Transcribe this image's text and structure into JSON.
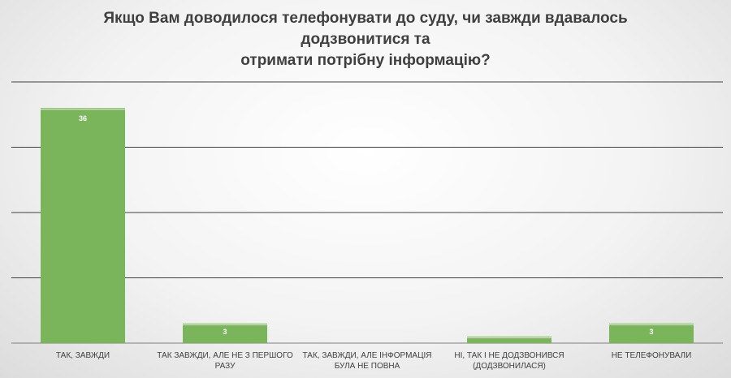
{
  "chart_data": {
    "type": "bar",
    "title": "Якщо Вам доводилося телефонувати до суду, чи завжди вдавалось\nдодзвонитися та\nотримати потрібну інформацію?",
    "categories": [
      "ТАК, ЗАВЖДИ",
      "ТАК ЗАВЖДИ, АЛЕ НЕ З ПЕРШОГО РАЗУ",
      "ТАК, ЗАВЖДИ, АЛЕ ІНФОРМАЦІЯ БУЛА НЕ ПОВНА",
      "НІ, ТАК І НЕ ДОДЗВОНИВСЯ (ДОДЗВОНИЛАСЯ)",
      "НЕ ТЕЛЕФОНУВАЛИ"
    ],
    "values": [
      36,
      3,
      0,
      1,
      3
    ],
    "data_labels": [
      "36",
      "3",
      "",
      "",
      "3"
    ],
    "ylim": [
      0,
      40
    ],
    "grid": true,
    "bar_color": "#7ab55c",
    "xlabel": "",
    "ylabel": ""
  }
}
